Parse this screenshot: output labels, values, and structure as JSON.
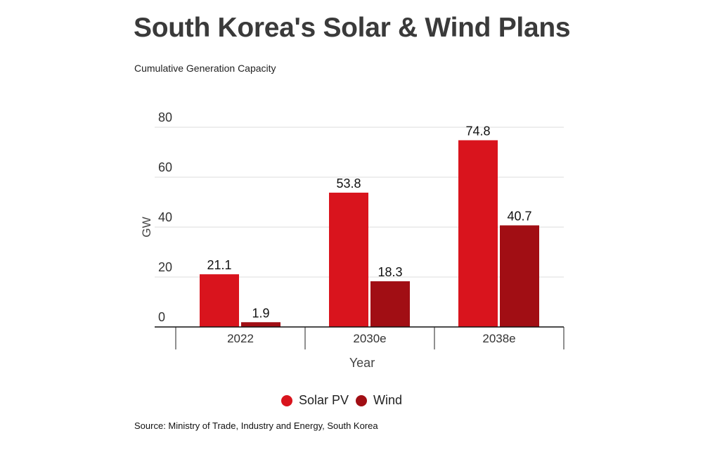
{
  "title": "South Korea's Solar & Wind Plans",
  "subtitle": "Cumulative Generation Capacity",
  "source": "Source: Ministry of Trade, Industry and Energy, South Korea",
  "chart_data": {
    "type": "bar",
    "categories": [
      "2022",
      "2030e",
      "2038e"
    ],
    "series": [
      {
        "name": "Solar PV",
        "values": [
          21.1,
          53.8,
          74.8
        ],
        "color": "#d9141d"
      },
      {
        "name": "Wind",
        "values": [
          1.9,
          18.3,
          40.7
        ],
        "color": "#a10e14"
      }
    ],
    "value_labels": [
      [
        "21.1",
        "53.8",
        "74.8"
      ],
      [
        "1.9",
        "18.3",
        "40.7"
      ]
    ],
    "xlabel": "Year",
    "ylabel": "GW",
    "ylim": [
      0,
      80
    ],
    "yticks": [
      "0",
      "20",
      "40",
      "60",
      "80"
    ],
    "grid": true,
    "legend": "bottom"
  }
}
